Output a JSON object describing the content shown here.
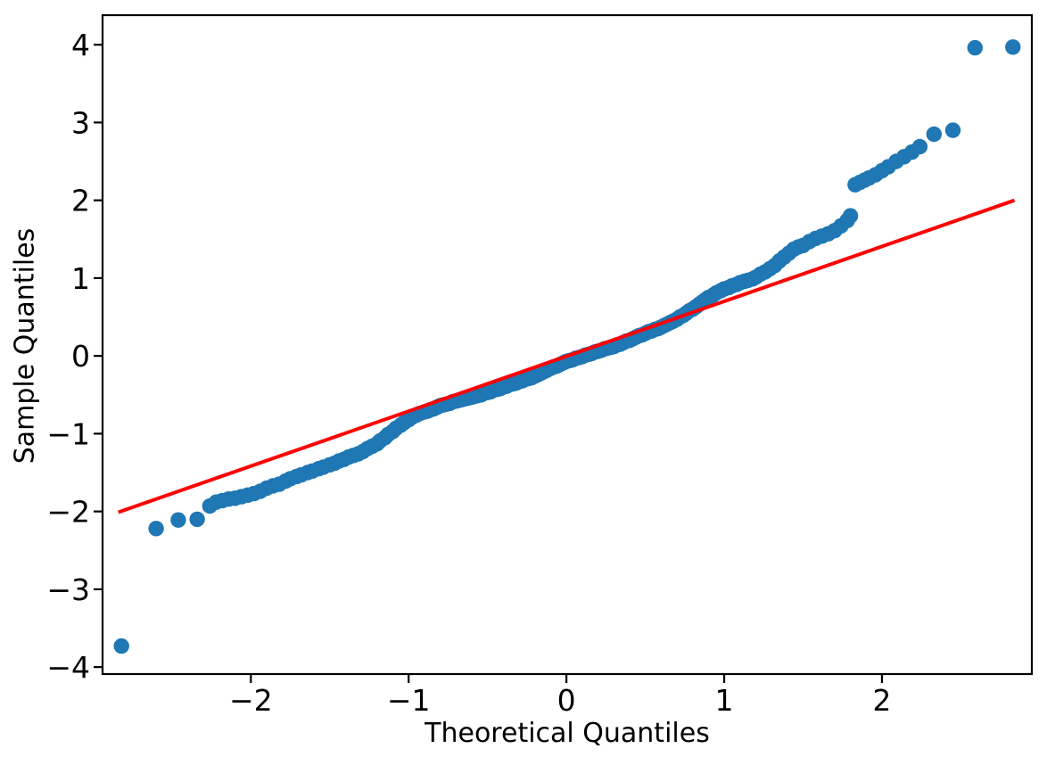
{
  "figure": {
    "kind": "qq-plot",
    "background_color": "#ffffff"
  },
  "chart_data": {
    "type": "scatter",
    "title": "",
    "xlabel": "Theoretical Quantiles",
    "ylabel": "Sample Quantiles",
    "xlim": [
      -2.94,
      2.95
    ],
    "ylim": [
      -4.09,
      4.38
    ],
    "grid": false,
    "legend": null,
    "x_ticks": {
      "values": [
        -2,
        -1,
        0,
        1,
        2
      ],
      "labels": [
        "−2",
        "−1",
        "0",
        "1",
        "2"
      ]
    },
    "y_ticks": {
      "values": [
        -4,
        -3,
        -2,
        -1,
        0,
        1,
        2,
        3,
        4
      ],
      "labels": [
        "−4",
        "−3",
        "−2",
        "−1",
        "0",
        "1",
        "2",
        "3",
        "4"
      ]
    },
    "colors": {
      "marker": "#1f77b4",
      "reference_line": "#ff0000",
      "axis": "#000000"
    },
    "series": [
      {
        "name": "sample-quantiles-points",
        "type": "scatter",
        "points": [
          [
            -2.82,
            -3.73
          ],
          [
            -2.6,
            -2.22
          ],
          [
            -2.46,
            -2.11
          ],
          [
            -2.34,
            -2.1
          ],
          [
            -2.26,
            -1.93
          ],
          [
            -2.22,
            -1.88
          ],
          [
            -2.18,
            -1.86
          ],
          [
            -2.14,
            -1.84
          ],
          [
            -2.1,
            -1.83
          ],
          [
            -2.06,
            -1.81
          ],
          [
            -2.02,
            -1.79
          ],
          [
            -1.98,
            -1.77
          ],
          [
            -1.94,
            -1.74
          ],
          [
            -1.9,
            -1.7
          ],
          [
            -1.86,
            -1.67
          ],
          [
            -1.82,
            -1.65
          ],
          [
            -1.78,
            -1.61
          ],
          [
            -1.75,
            -1.58
          ],
          [
            -1.71,
            -1.55
          ],
          [
            -1.68,
            -1.53
          ],
          [
            -1.64,
            -1.5
          ],
          [
            -1.61,
            -1.48
          ],
          [
            -1.57,
            -1.45
          ],
          [
            -1.54,
            -1.43
          ],
          [
            -1.5,
            -1.4
          ],
          [
            -1.47,
            -1.38
          ],
          [
            -1.44,
            -1.35
          ],
          [
            -1.41,
            -1.33
          ],
          [
            -1.38,
            -1.3
          ],
          [
            -1.35,
            -1.28
          ],
          [
            -1.32,
            -1.26
          ],
          [
            -1.29,
            -1.23
          ],
          [
            -1.26,
            -1.19
          ],
          [
            -1.23,
            -1.16
          ],
          [
            -1.2,
            -1.13
          ],
          [
            -1.18,
            -1.09
          ],
          [
            -1.15,
            -1.05
          ],
          [
            -1.13,
            -1.01
          ],
          [
            -1.1,
            -0.97
          ],
          [
            -1.08,
            -0.93
          ],
          [
            -1.05,
            -0.89
          ],
          [
            -1.03,
            -0.86
          ],
          [
            -1.0,
            -0.82
          ],
          [
            -0.98,
            -0.79
          ],
          [
            -0.95,
            -0.76
          ],
          [
            -0.93,
            -0.74
          ],
          [
            -0.9,
            -0.72
          ],
          [
            -0.88,
            -0.71
          ],
          [
            -0.86,
            -0.69
          ],
          [
            -0.84,
            -0.68
          ],
          [
            -0.82,
            -0.66
          ],
          [
            -0.8,
            -0.64
          ],
          [
            -0.78,
            -0.63
          ],
          [
            -0.76,
            -0.62
          ],
          [
            -0.74,
            -0.61
          ],
          [
            -0.72,
            -0.59
          ],
          [
            -0.7,
            -0.58
          ],
          [
            -0.68,
            -0.57
          ],
          [
            -0.66,
            -0.56
          ],
          [
            -0.64,
            -0.55
          ],
          [
            -0.62,
            -0.54
          ],
          [
            -0.6,
            -0.53
          ],
          [
            -0.58,
            -0.52
          ],
          [
            -0.56,
            -0.51
          ],
          [
            -0.54,
            -0.5
          ],
          [
            -0.52,
            -0.48
          ],
          [
            -0.5,
            -0.47
          ],
          [
            -0.48,
            -0.46
          ],
          [
            -0.46,
            -0.44
          ],
          [
            -0.44,
            -0.43
          ],
          [
            -0.42,
            -0.42
          ],
          [
            -0.4,
            -0.4
          ],
          [
            -0.38,
            -0.39
          ],
          [
            -0.36,
            -0.37
          ],
          [
            -0.34,
            -0.36
          ],
          [
            -0.32,
            -0.35
          ],
          [
            -0.3,
            -0.33
          ],
          [
            -0.28,
            -0.32
          ],
          [
            -0.26,
            -0.3
          ],
          [
            -0.24,
            -0.29
          ],
          [
            -0.22,
            -0.28
          ],
          [
            -0.2,
            -0.26
          ],
          [
            -0.18,
            -0.24
          ],
          [
            -0.16,
            -0.22
          ],
          [
            -0.14,
            -0.2
          ],
          [
            -0.12,
            -0.18
          ],
          [
            -0.1,
            -0.16
          ],
          [
            -0.08,
            -0.14
          ],
          [
            -0.06,
            -0.13
          ],
          [
            -0.04,
            -0.11
          ],
          [
            -0.02,
            -0.09
          ],
          [
            0,
            -0.07
          ],
          [
            0.02,
            -0.06
          ],
          [
            0.04,
            -0.05
          ],
          [
            0.06,
            -0.03
          ],
          [
            0.08,
            -0.02
          ],
          [
            0.1,
            -0.01
          ],
          [
            0.12,
            0.01
          ],
          [
            0.14,
            0.02
          ],
          [
            0.16,
            0.03
          ],
          [
            0.18,
            0.05
          ],
          [
            0.2,
            0.06
          ],
          [
            0.22,
            0.07
          ],
          [
            0.24,
            0.09
          ],
          [
            0.26,
            0.1
          ],
          [
            0.28,
            0.11
          ],
          [
            0.3,
            0.12
          ],
          [
            0.32,
            0.14
          ],
          [
            0.34,
            0.15
          ],
          [
            0.36,
            0.17
          ],
          [
            0.38,
            0.19
          ],
          [
            0.4,
            0.2
          ],
          [
            0.42,
            0.22
          ],
          [
            0.44,
            0.24
          ],
          [
            0.46,
            0.26
          ],
          [
            0.48,
            0.27
          ],
          [
            0.5,
            0.29
          ],
          [
            0.52,
            0.31
          ],
          [
            0.54,
            0.32
          ],
          [
            0.56,
            0.34
          ],
          [
            0.58,
            0.35
          ],
          [
            0.6,
            0.37
          ],
          [
            0.62,
            0.39
          ],
          [
            0.64,
            0.41
          ],
          [
            0.66,
            0.43
          ],
          [
            0.68,
            0.45
          ],
          [
            0.7,
            0.47
          ],
          [
            0.72,
            0.5
          ],
          [
            0.74,
            0.52
          ],
          [
            0.76,
            0.55
          ],
          [
            0.78,
            0.58
          ],
          [
            0.8,
            0.6
          ],
          [
            0.82,
            0.63
          ],
          [
            0.84,
            0.66
          ],
          [
            0.86,
            0.69
          ],
          [
            0.88,
            0.72
          ],
          [
            0.9,
            0.75
          ],
          [
            0.93,
            0.78
          ],
          [
            0.95,
            0.81
          ],
          [
            0.98,
            0.84
          ],
          [
            1.0,
            0.86
          ],
          [
            1.03,
            0.88
          ],
          [
            1.05,
            0.9
          ],
          [
            1.08,
            0.92
          ],
          [
            1.1,
            0.94
          ],
          [
            1.13,
            0.96
          ],
          [
            1.15,
            0.97
          ],
          [
            1.18,
            0.99
          ],
          [
            1.2,
            1.01
          ],
          [
            1.23,
            1.05
          ],
          [
            1.26,
            1.08
          ],
          [
            1.29,
            1.12
          ],
          [
            1.32,
            1.16
          ],
          [
            1.35,
            1.22
          ],
          [
            1.38,
            1.27
          ],
          [
            1.41,
            1.32
          ],
          [
            1.44,
            1.37
          ],
          [
            1.47,
            1.4
          ],
          [
            1.5,
            1.42
          ],
          [
            1.54,
            1.47
          ],
          [
            1.58,
            1.51
          ],
          [
            1.62,
            1.54
          ],
          [
            1.66,
            1.57
          ],
          [
            1.7,
            1.61
          ],
          [
            1.74,
            1.67
          ],
          [
            1.78,
            1.74
          ],
          [
            1.8,
            1.8
          ],
          [
            1.83,
            2.2
          ],
          [
            1.86,
            2.23
          ],
          [
            1.89,
            2.26
          ],
          [
            1.92,
            2.29
          ],
          [
            1.96,
            2.33
          ],
          [
            2.0,
            2.38
          ],
          [
            2.04,
            2.43
          ],
          [
            2.09,
            2.5
          ],
          [
            2.14,
            2.56
          ],
          [
            2.19,
            2.62
          ],
          [
            2.24,
            2.69
          ],
          [
            2.33,
            2.85
          ],
          [
            2.45,
            2.9
          ],
          [
            2.59,
            3.96
          ],
          [
            2.83,
            3.97
          ]
        ]
      },
      {
        "name": "reference-line",
        "type": "line",
        "points": [
          [
            -2.84,
            -2.01
          ],
          [
            2.84,
            2.0
          ]
        ]
      }
    ]
  }
}
